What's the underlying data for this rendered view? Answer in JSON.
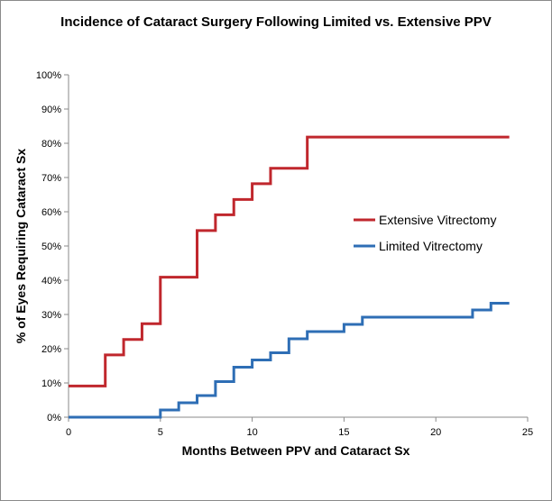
{
  "chart_data": {
    "type": "line",
    "step": true,
    "title": "Incidence of Cataract Surgery Following Limited vs. Extensive PPV",
    "xlabel": "Months Between PPV and Cataract Sx",
    "ylabel": "% of Eyes Requiring Cataract Sx",
    "xlim": [
      0,
      25
    ],
    "ylim": [
      0,
      100
    ],
    "xticks": [
      0,
      5,
      10,
      15,
      20,
      25
    ],
    "yticks": [
      0,
      10,
      20,
      30,
      40,
      50,
      60,
      70,
      80,
      90,
      100
    ],
    "ytick_suffix": "%",
    "grid": false,
    "legend_position": "right-center",
    "series": [
      {
        "name": "Extensive Vitrectomy",
        "color": "#C0272D",
        "x": [
          0,
          2,
          3,
          4,
          5,
          7,
          8,
          9,
          10,
          11,
          13,
          24
        ],
        "y": [
          9.1,
          18.2,
          22.7,
          27.3,
          40.9,
          54.5,
          59.1,
          63.6,
          68.2,
          72.7,
          81.8,
          81.8
        ]
      },
      {
        "name": "Limited Vitrectomy",
        "color": "#2E6EB5",
        "x": [
          0,
          5,
          6,
          7,
          8,
          9,
          10,
          11,
          12,
          13,
          15,
          16,
          22,
          23,
          24
        ],
        "y": [
          0,
          2.1,
          4.2,
          6.3,
          10.4,
          14.6,
          16.7,
          18.8,
          22.9,
          25.0,
          27.1,
          29.2,
          31.3,
          33.3,
          33.3
        ]
      }
    ]
  }
}
